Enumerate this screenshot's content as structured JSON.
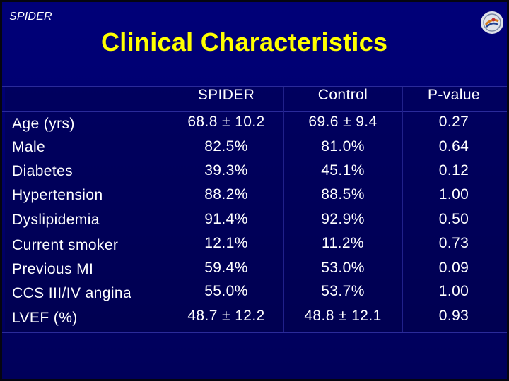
{
  "slide": {
    "tag": "SPIDER",
    "title": "Clinical Characteristics",
    "logo_icon": "conference-logo-icon"
  },
  "table": {
    "columns": [
      "SPIDER",
      "Control",
      "P-value"
    ],
    "rows": [
      {
        "label": "Age (yrs)",
        "spider": "68.8 ± 10.2",
        "control": "69.6 ± 9.4",
        "p": "0.27"
      },
      {
        "label": "Male",
        "spider": "82.5%",
        "control": "81.0%",
        "p": "0.64"
      },
      {
        "label": "Diabetes",
        "spider": "39.3%",
        "control": "45.1%",
        "p": "0.12"
      },
      {
        "label": "Hypertension",
        "spider": "88.2%",
        "control": "88.5%",
        "p": "1.00"
      },
      {
        "label": "Dyslipidemia",
        "spider": "91.4%",
        "control": "92.9%",
        "p": "0.50"
      },
      {
        "label": "Current smoker",
        "spider": "12.1%",
        "control": "11.2%",
        "p": "0.73"
      },
      {
        "label": "Previous MI",
        "spider": "59.4%",
        "control": "53.0%",
        "p": "0.09"
      },
      {
        "label": "CCS III/IV angina",
        "spider": "55.0%",
        "control": "53.7%",
        "p": "1.00"
      },
      {
        "label": "LVEF (%)",
        "spider": "48.7 ± 12.2",
        "control": "48.8 ± 12.1",
        "p": "0.93"
      }
    ]
  },
  "colors": {
    "background": "#00006c",
    "title": "#ffff00",
    "text": "#ffffff"
  }
}
